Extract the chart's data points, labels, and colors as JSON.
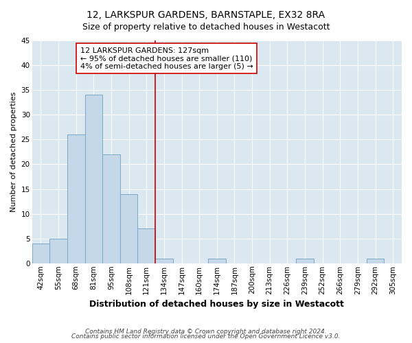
{
  "title": "12, LARKSPUR GARDENS, BARNSTAPLE, EX32 8RA",
  "subtitle": "Size of property relative to detached houses in Westacott",
  "xlabel": "Distribution of detached houses by size in Westacott",
  "ylabel": "Number of detached properties",
  "bar_labels": [
    "42sqm",
    "55sqm",
    "68sqm",
    "81sqm",
    "95sqm",
    "108sqm",
    "121sqm",
    "134sqm",
    "147sqm",
    "160sqm",
    "174sqm",
    "187sqm",
    "200sqm",
    "213sqm",
    "226sqm",
    "239sqm",
    "252sqm",
    "266sqm",
    "279sqm",
    "292sqm",
    "305sqm"
  ],
  "bar_values": [
    4,
    5,
    26,
    34,
    22,
    14,
    7,
    1,
    0,
    0,
    1,
    0,
    0,
    0,
    0,
    1,
    0,
    0,
    0,
    1,
    0
  ],
  "bar_color": "#c5d8ea",
  "bar_edge_color": "#7aaac8",
  "vline_color": "#cc0000",
  "annotation_line1": "12 LARKSPUR GARDENS: 127sqm",
  "annotation_line2": "← 95% of detached houses are smaller (110)",
  "annotation_line3": "4% of semi-detached houses are larger (5) →",
  "annotation_box_edge_color": "#cc0000",
  "annotation_box_face_color": "#ffffff",
  "ylim": [
    0,
    45
  ],
  "yticks": [
    0,
    5,
    10,
    15,
    20,
    25,
    30,
    35,
    40,
    45
  ],
  "footer1": "Contains HM Land Registry data © Crown copyright and database right 2024.",
  "footer2": "Contains public sector information licensed under the Open Government Licence v3.0.",
  "background_color": "#ffffff",
  "plot_bg_color": "#dce8f0",
  "title_fontsize": 10,
  "subtitle_fontsize": 9,
  "xlabel_fontsize": 9,
  "ylabel_fontsize": 8,
  "tick_fontsize": 7.5,
  "annotation_fontsize": 8,
  "footer_fontsize": 6.5
}
